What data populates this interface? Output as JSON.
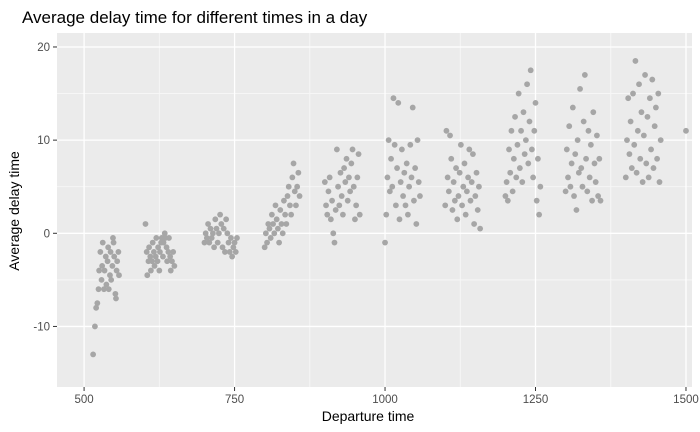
{
  "chart_data": {
    "type": "scatter",
    "title": "Average delay time for different times in a day",
    "xlabel": "Departure time",
    "ylabel": "Average delay time",
    "xlim": [
      455,
      1510
    ],
    "ylim": [
      -16.5,
      21.5
    ],
    "x_ticks": [
      500,
      750,
      1000,
      1250,
      1500
    ],
    "y_ticks": [
      -10,
      0,
      10,
      20
    ],
    "grid": true,
    "legend": "none",
    "colors": {
      "panel": "#ebebeb",
      "grid_major": "#ffffff",
      "point": "#a6a6a6"
    },
    "points": [
      [
        515,
        -13.0
      ],
      [
        518,
        -10.0
      ],
      [
        520,
        -8.0
      ],
      [
        522,
        -7.5
      ],
      [
        524,
        -6.0
      ],
      [
        525,
        -4.0
      ],
      [
        527,
        -2.0
      ],
      [
        529,
        -5.0
      ],
      [
        530,
        -3.5
      ],
      [
        531,
        -1.0
      ],
      [
        533,
        -6.0
      ],
      [
        534,
        -4.0
      ],
      [
        536,
        -2.5
      ],
      [
        537,
        -5.5
      ],
      [
        539,
        -3.0
      ],
      [
        540,
        -1.5
      ],
      [
        541,
        -6.0
      ],
      [
        543,
        -4.5
      ],
      [
        544,
        -2.0
      ],
      [
        545,
        -5.0
      ],
      [
        547,
        -3.5
      ],
      [
        548,
        -0.5
      ],
      [
        549,
        -1.0
      ],
      [
        550,
        -2.5
      ],
      [
        552,
        -6.5
      ],
      [
        553,
        -7.0
      ],
      [
        554,
        -4.0
      ],
      [
        555,
        -3.0
      ],
      [
        557,
        -2.0
      ],
      [
        558,
        -4.5
      ],
      [
        602,
        1.0
      ],
      [
        604,
        -2.0
      ],
      [
        605,
        -4.5
      ],
      [
        607,
        -3.0
      ],
      [
        608,
        -1.5
      ],
      [
        610,
        -2.5
      ],
      [
        611,
        -4.0
      ],
      [
        613,
        -3.0
      ],
      [
        614,
        -1.0
      ],
      [
        616,
        -2.0
      ],
      [
        617,
        -3.5
      ],
      [
        619,
        -2.5
      ],
      [
        620,
        -0.5
      ],
      [
        622,
        -3.0
      ],
      [
        623,
        -1.5
      ],
      [
        625,
        -4.0
      ],
      [
        626,
        -2.0
      ],
      [
        628,
        -1.0
      ],
      [
        629,
        -0.5
      ],
      [
        631,
        -2.5
      ],
      [
        632,
        -1.0
      ],
      [
        634,
        0.0
      ],
      [
        635,
        -0.5
      ],
      [
        637,
        -1.5
      ],
      [
        638,
        -3.0
      ],
      [
        640,
        -2.0
      ],
      [
        641,
        -0.5
      ],
      [
        643,
        -2.5
      ],
      [
        644,
        -4.0
      ],
      [
        646,
        -3.0
      ],
      [
        648,
        -2.0
      ],
      [
        650,
        -3.5
      ],
      [
        700,
        -1.0
      ],
      [
        702,
        0.0
      ],
      [
        704,
        -0.5
      ],
      [
        706,
        1.0
      ],
      [
        708,
        -1.0
      ],
      [
        710,
        0.5
      ],
      [
        712,
        -0.5
      ],
      [
        714,
        0.0
      ],
      [
        716,
        -1.5
      ],
      [
        718,
        1.5
      ],
      [
        720,
        0.5
      ],
      [
        722,
        -1.0
      ],
      [
        724,
        0.0
      ],
      [
        726,
        2.0
      ],
      [
        728,
        1.0
      ],
      [
        730,
        -1.5
      ],
      [
        732,
        0.5
      ],
      [
        734,
        -2.0
      ],
      [
        736,
        1.5
      ],
      [
        738,
        0.0
      ],
      [
        740,
        -1.0
      ],
      [
        742,
        -2.0
      ],
      [
        744,
        -0.5
      ],
      [
        746,
        -2.5
      ],
      [
        748,
        -1.5
      ],
      [
        750,
        -1.0
      ],
      [
        752,
        -2.0
      ],
      [
        754,
        -0.5
      ],
      [
        800,
        -1.5
      ],
      [
        802,
        0.0
      ],
      [
        804,
        -1.0
      ],
      [
        806,
        1.0
      ],
      [
        808,
        0.5
      ],
      [
        810,
        -0.5
      ],
      [
        812,
        2.0
      ],
      [
        814,
        1.0
      ],
      [
        816,
        0.0
      ],
      [
        818,
        3.0
      ],
      [
        820,
        1.5
      ],
      [
        822,
        0.5
      ],
      [
        824,
        -1.0
      ],
      [
        826,
        2.5
      ],
      [
        828,
        1.0
      ],
      [
        830,
        0.0
      ],
      [
        832,
        3.5
      ],
      [
        834,
        2.0
      ],
      [
        836,
        1.0
      ],
      [
        838,
        4.0
      ],
      [
        840,
        5.0
      ],
      [
        842,
        3.0
      ],
      [
        844,
        2.0
      ],
      [
        846,
        6.0
      ],
      [
        848,
        7.5
      ],
      [
        850,
        4.5
      ],
      [
        852,
        3.0
      ],
      [
        854,
        5.0
      ],
      [
        856,
        6.5
      ],
      [
        858,
        4.0
      ],
      [
        900,
        5.5
      ],
      [
        902,
        3.0
      ],
      [
        904,
        2.0
      ],
      [
        906,
        4.5
      ],
      [
        908,
        6.0
      ],
      [
        910,
        1.5
      ],
      [
        912,
        3.5
      ],
      [
        914,
        0.0
      ],
      [
        916,
        -1.0
      ],
      [
        918,
        2.5
      ],
      [
        920,
        9.0
      ],
      [
        922,
        5.0
      ],
      [
        924,
        3.0
      ],
      [
        926,
        6.5
      ],
      [
        928,
        4.0
      ],
      [
        930,
        2.0
      ],
      [
        932,
        7.0
      ],
      [
        934,
        5.5
      ],
      [
        936,
        8.0
      ],
      [
        938,
        3.5
      ],
      [
        940,
        6.0
      ],
      [
        942,
        4.5
      ],
      [
        944,
        7.5
      ],
      [
        946,
        9.0
      ],
      [
        948,
        5.0
      ],
      [
        950,
        1.5
      ],
      [
        952,
        3.0
      ],
      [
        954,
        6.0
      ],
      [
        956,
        8.5
      ],
      [
        958,
        2.0
      ],
      [
        1000,
        -1.0
      ],
      [
        1002,
        2.0
      ],
      [
        1004,
        6.0
      ],
      [
        1006,
        10.0
      ],
      [
        1008,
        4.5
      ],
      [
        1010,
        8.0
      ],
      [
        1012,
        5.0
      ],
      [
        1014,
        14.5
      ],
      [
        1016,
        9.5
      ],
      [
        1018,
        3.0
      ],
      [
        1020,
        7.0
      ],
      [
        1022,
        14.0
      ],
      [
        1024,
        1.5
      ],
      [
        1026,
        5.5
      ],
      [
        1028,
        9.0
      ],
      [
        1030,
        4.0
      ],
      [
        1032,
        6.5
      ],
      [
        1034,
        3.0
      ],
      [
        1036,
        7.5
      ],
      [
        1038,
        2.0
      ],
      [
        1040,
        5.0
      ],
      [
        1042,
        9.5
      ],
      [
        1044,
        6.0
      ],
      [
        1046,
        13.5
      ],
      [
        1048,
        3.5
      ],
      [
        1050,
        7.0
      ],
      [
        1052,
        1.0
      ],
      [
        1054,
        10.0
      ],
      [
        1056,
        5.5
      ],
      [
        1058,
        4.0
      ],
      [
        1100,
        3.0
      ],
      [
        1102,
        11.0
      ],
      [
        1104,
        6.0
      ],
      [
        1106,
        4.5
      ],
      [
        1108,
        10.5
      ],
      [
        1110,
        8.0
      ],
      [
        1112,
        2.5
      ],
      [
        1114,
        5.5
      ],
      [
        1116,
        3.5
      ],
      [
        1118,
        7.0
      ],
      [
        1120,
        1.5
      ],
      [
        1122,
        4.0
      ],
      [
        1124,
        6.5
      ],
      [
        1126,
        9.5
      ],
      [
        1128,
        3.0
      ],
      [
        1130,
        5.0
      ],
      [
        1132,
        7.5
      ],
      [
        1134,
        2.0
      ],
      [
        1136,
        4.5
      ],
      [
        1138,
        6.0
      ],
      [
        1140,
        9.0
      ],
      [
        1142,
        3.5
      ],
      [
        1144,
        5.5
      ],
      [
        1146,
        8.5
      ],
      [
        1148,
        1.0
      ],
      [
        1150,
        4.0
      ],
      [
        1152,
        6.5
      ],
      [
        1154,
        2.5
      ],
      [
        1156,
        5.0
      ],
      [
        1158,
        0.5
      ],
      [
        1200,
        4.0
      ],
      [
        1202,
        5.5
      ],
      [
        1204,
        3.5
      ],
      [
        1206,
        9.0
      ],
      [
        1208,
        6.5
      ],
      [
        1210,
        11.0
      ],
      [
        1212,
        4.5
      ],
      [
        1214,
        8.0
      ],
      [
        1216,
        12.5
      ],
      [
        1218,
        6.0
      ],
      [
        1220,
        9.5
      ],
      [
        1222,
        15.0
      ],
      [
        1224,
        7.0
      ],
      [
        1226,
        11.0
      ],
      [
        1228,
        5.5
      ],
      [
        1230,
        13.0
      ],
      [
        1232,
        8.5
      ],
      [
        1234,
        10.0
      ],
      [
        1236,
        16.0
      ],
      [
        1238,
        7.5
      ],
      [
        1240,
        12.0
      ],
      [
        1242,
        17.5
      ],
      [
        1244,
        9.0
      ],
      [
        1246,
        6.0
      ],
      [
        1248,
        11.0
      ],
      [
        1250,
        14.0
      ],
      [
        1252,
        3.5
      ],
      [
        1254,
        8.0
      ],
      [
        1256,
        2.0
      ],
      [
        1258,
        5.0
      ],
      [
        1300,
        4.5
      ],
      [
        1302,
        9.0
      ],
      [
        1304,
        6.0
      ],
      [
        1306,
        11.5
      ],
      [
        1308,
        5.0
      ],
      [
        1310,
        7.5
      ],
      [
        1312,
        13.5
      ],
      [
        1314,
        4.0
      ],
      [
        1316,
        8.5
      ],
      [
        1318,
        2.5
      ],
      [
        1320,
        10.0
      ],
      [
        1322,
        6.5
      ],
      [
        1324,
        15.5
      ],
      [
        1326,
        7.0
      ],
      [
        1328,
        5.0
      ],
      [
        1330,
        12.0
      ],
      [
        1332,
        17.0
      ],
      [
        1334,
        8.0
      ],
      [
        1336,
        4.5
      ],
      [
        1338,
        11.0
      ],
      [
        1340,
        6.0
      ],
      [
        1342,
        9.5
      ],
      [
        1344,
        3.5
      ],
      [
        1346,
        13.0
      ],
      [
        1348,
        7.5
      ],
      [
        1350,
        5.5
      ],
      [
        1352,
        10.5
      ],
      [
        1354,
        4.0
      ],
      [
        1356,
        8.0
      ],
      [
        1358,
        3.5
      ],
      [
        1400,
        6.0
      ],
      [
        1402,
        10.0
      ],
      [
        1404,
        14.5
      ],
      [
        1406,
        8.5
      ],
      [
        1408,
        12.0
      ],
      [
        1410,
        7.0
      ],
      [
        1412,
        15.0
      ],
      [
        1414,
        9.5
      ],
      [
        1416,
        18.5
      ],
      [
        1418,
        6.5
      ],
      [
        1420,
        11.0
      ],
      [
        1422,
        16.0
      ],
      [
        1424,
        8.0
      ],
      [
        1426,
        13.0
      ],
      [
        1428,
        5.5
      ],
      [
        1430,
        10.5
      ],
      [
        1432,
        17.0
      ],
      [
        1434,
        7.5
      ],
      [
        1436,
        12.5
      ],
      [
        1438,
        6.0
      ],
      [
        1440,
        14.5
      ],
      [
        1442,
        9.0
      ],
      [
        1444,
        16.5
      ],
      [
        1446,
        7.0
      ],
      [
        1448,
        11.5
      ],
      [
        1450,
        13.5
      ],
      [
        1452,
        8.0
      ],
      [
        1454,
        15.0
      ],
      [
        1456,
        5.5
      ],
      [
        1458,
        10.0
      ],
      [
        1500,
        11.0
      ]
    ]
  }
}
